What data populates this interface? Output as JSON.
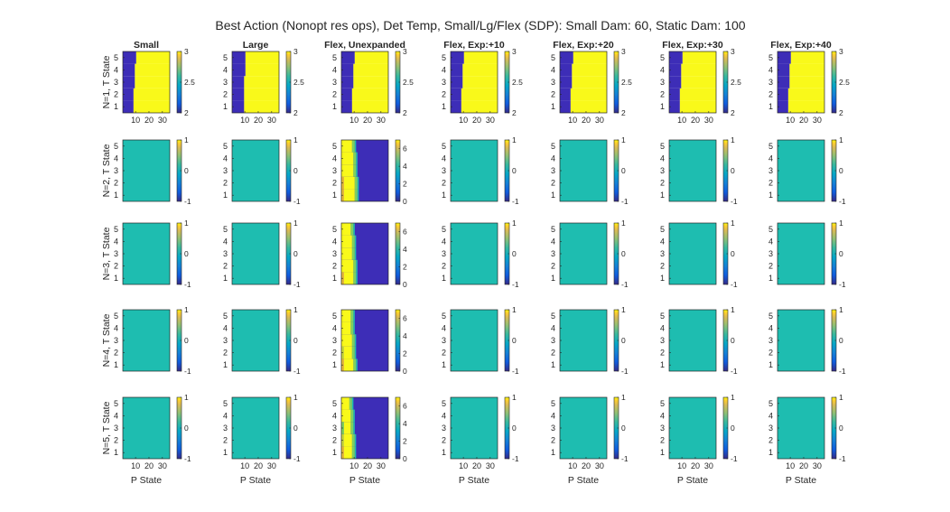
{
  "chart_data": {
    "type": "heatmap",
    "title": "Best Action (Nonopt res ops), Det Temp, Small/Lg/Flex (SDP): Small Dam: 60, Static Dam: 100",
    "columns": [
      "Small",
      "Large",
      "Flex, Unexpanded",
      "Flex, Exp:+10",
      "Flex, Exp:+20",
      "Flex, Exp:+30",
      "Flex, Exp:+40"
    ],
    "row_labels": [
      "N=1, T State",
      "N=2, T State",
      "N=3, T State",
      "N=4, T State",
      "N=5, T State"
    ],
    "xlabel": "P State",
    "x_ticks": [
      "10",
      "20",
      "30"
    ],
    "y_ticks": [
      "1",
      "2",
      "3",
      "4",
      "5"
    ],
    "xlim": [
      1,
      35
    ],
    "ylim": [
      0.5,
      5.5
    ],
    "colormap": "parula",
    "colors": {
      "low": "#3d2db7",
      "mid": "#1ebdb0",
      "high": "#f9f91a",
      "lightgreen": "#7fd060",
      "green": "#58c776",
      "yellow_green": "#c9d73a",
      "orange": "#e6b93a"
    },
    "colorbars": {
      "n1": {
        "ticks": [
          "2",
          "2.5",
          "3"
        ],
        "range": [
          2,
          3
        ]
      },
      "zero": {
        "ticks": [
          "-1",
          "0",
          "1"
        ],
        "range": [
          -1,
          1
        ]
      },
      "flex": {
        "ticks": [
          "0",
          "2",
          "4",
          "6"
        ],
        "range": [
          0,
          7
        ]
      }
    },
    "panels": {
      "n1_small": {
        "boundary_p_by_t": [
          8,
          8,
          9,
          9,
          10
        ],
        "left_value": 2,
        "right_value": 3
      },
      "n1_large": {
        "boundary_p_by_t": [
          9,
          9,
          9,
          10,
          10
        ],
        "left_value": 2,
        "right_value": 3
      },
      "n1_flex_unexpanded": {
        "boundary_p_by_t": [
          8,
          8,
          9,
          9,
          10
        ],
        "left_value": 2,
        "right_value": 3
      },
      "n1_flex_exp": {
        "boundary_p_by_t": [
          8,
          8,
          9,
          9,
          10
        ],
        "left_value": 2,
        "right_value": 3
      },
      "zero_panels_value": 0,
      "flex_unexpanded_rows_2_to_5": "values 6-7 at low P State, stepping down through 4 and 2 to 0 by P State 14"
    }
  }
}
